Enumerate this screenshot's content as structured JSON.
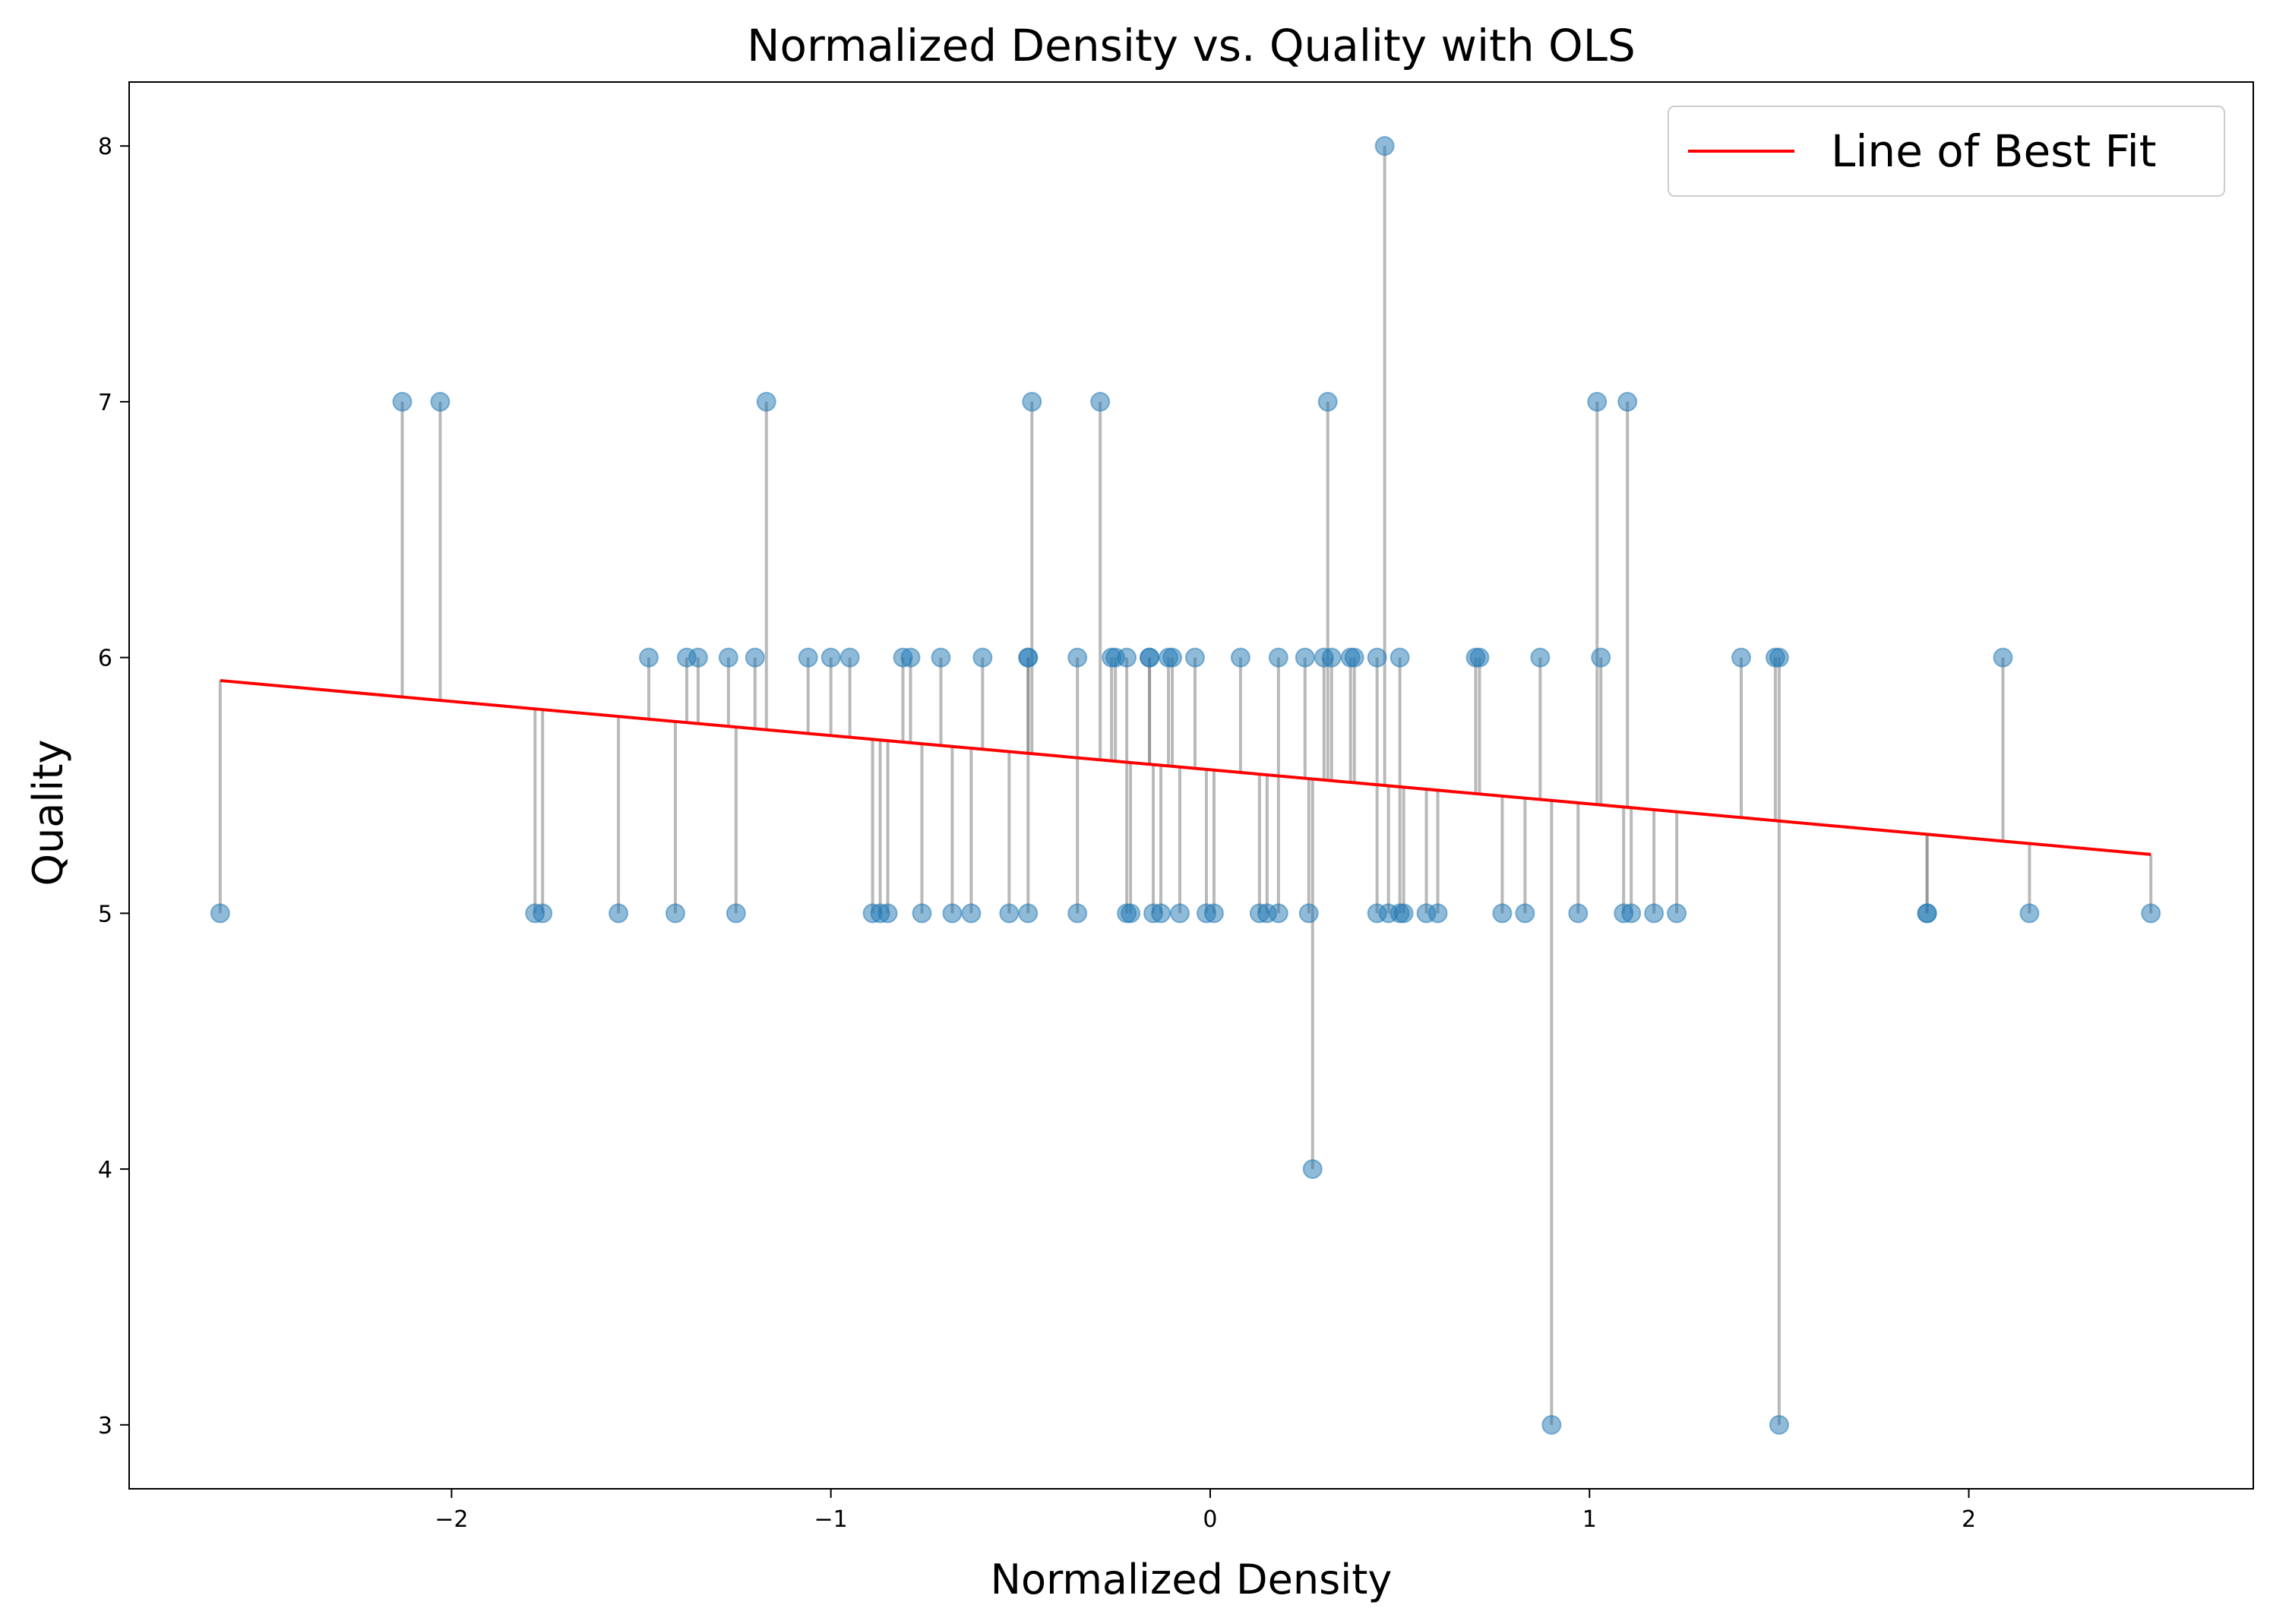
{
  "chart_data": {
    "type": "scatter",
    "title": "Normalized Density vs. Quality with OLS",
    "xlabel": "Normalized Density",
    "ylabel": "Quality",
    "xlim": [
      -2.85,
      2.75
    ],
    "ylim": [
      2.75,
      8.25
    ],
    "x_ticks": [
      -2,
      -1,
      0,
      1,
      2
    ],
    "x_tick_labels": [
      "−2",
      "−1",
      "0",
      "1",
      "2"
    ],
    "y_ticks": [
      3,
      4,
      5,
      6,
      7,
      8
    ],
    "y_tick_labels": [
      "3",
      "4",
      "5",
      "6",
      "7",
      "8"
    ],
    "grid": false,
    "legend": {
      "placement": "top-right",
      "entries": [
        "Line of Best Fit"
      ]
    },
    "colors": {
      "points": "#1f77b4",
      "fit_line": "#ff0000",
      "residuals": "#808080"
    },
    "fit_line": {
      "name": "Line of Best Fit",
      "x": [
        -2.61,
        2.48
      ],
      "y": [
        5.91,
        5.23
      ]
    },
    "points": [
      {
        "x": -2.61,
        "y": 5
      },
      {
        "x": -2.13,
        "y": 7
      },
      {
        "x": -2.03,
        "y": 7
      },
      {
        "x": -1.78,
        "y": 5
      },
      {
        "x": -1.76,
        "y": 5
      },
      {
        "x": -1.56,
        "y": 5
      },
      {
        "x": -1.48,
        "y": 6
      },
      {
        "x": -1.41,
        "y": 5
      },
      {
        "x": -1.38,
        "y": 6
      },
      {
        "x": -1.35,
        "y": 6
      },
      {
        "x": -1.27,
        "y": 6
      },
      {
        "x": -1.25,
        "y": 5
      },
      {
        "x": -1.2,
        "y": 6
      },
      {
        "x": -1.17,
        "y": 7
      },
      {
        "x": -1.06,
        "y": 6
      },
      {
        "x": -1.0,
        "y": 6
      },
      {
        "x": -0.95,
        "y": 6
      },
      {
        "x": -0.89,
        "y": 5
      },
      {
        "x": -0.87,
        "y": 5
      },
      {
        "x": -0.85,
        "y": 5
      },
      {
        "x": -0.81,
        "y": 6
      },
      {
        "x": -0.79,
        "y": 6
      },
      {
        "x": -0.76,
        "y": 5
      },
      {
        "x": -0.71,
        "y": 6
      },
      {
        "x": -0.68,
        "y": 5
      },
      {
        "x": -0.63,
        "y": 5
      },
      {
        "x": -0.6,
        "y": 6
      },
      {
        "x": -0.53,
        "y": 5
      },
      {
        "x": -0.48,
        "y": 6
      },
      {
        "x": -0.48,
        "y": 6
      },
      {
        "x": -0.48,
        "y": 5
      },
      {
        "x": -0.47,
        "y": 7
      },
      {
        "x": -0.35,
        "y": 6
      },
      {
        "x": -0.35,
        "y": 5
      },
      {
        "x": -0.29,
        "y": 7
      },
      {
        "x": -0.26,
        "y": 6
      },
      {
        "x": -0.25,
        "y": 6
      },
      {
        "x": -0.22,
        "y": 6
      },
      {
        "x": -0.22,
        "y": 5
      },
      {
        "x": -0.21,
        "y": 5
      },
      {
        "x": -0.16,
        "y": 6
      },
      {
        "x": -0.16,
        "y": 6
      },
      {
        "x": -0.15,
        "y": 5
      },
      {
        "x": -0.13,
        "y": 5
      },
      {
        "x": -0.11,
        "y": 6
      },
      {
        "x": -0.1,
        "y": 6
      },
      {
        "x": -0.08,
        "y": 5
      },
      {
        "x": -0.04,
        "y": 6
      },
      {
        "x": -0.01,
        "y": 5
      },
      {
        "x": 0.01,
        "y": 5
      },
      {
        "x": 0.08,
        "y": 6
      },
      {
        "x": 0.13,
        "y": 5
      },
      {
        "x": 0.15,
        "y": 5
      },
      {
        "x": 0.18,
        "y": 6
      },
      {
        "x": 0.18,
        "y": 5
      },
      {
        "x": 0.25,
        "y": 6
      },
      {
        "x": 0.26,
        "y": 5
      },
      {
        "x": 0.27,
        "y": 4
      },
      {
        "x": 0.3,
        "y": 6
      },
      {
        "x": 0.31,
        "y": 7
      },
      {
        "x": 0.32,
        "y": 6
      },
      {
        "x": 0.37,
        "y": 6
      },
      {
        "x": 0.38,
        "y": 6
      },
      {
        "x": 0.44,
        "y": 6
      },
      {
        "x": 0.44,
        "y": 5
      },
      {
        "x": 0.46,
        "y": 8
      },
      {
        "x": 0.47,
        "y": 5
      },
      {
        "x": 0.5,
        "y": 6
      },
      {
        "x": 0.5,
        "y": 5
      },
      {
        "x": 0.51,
        "y": 5
      },
      {
        "x": 0.57,
        "y": 5
      },
      {
        "x": 0.6,
        "y": 5
      },
      {
        "x": 0.7,
        "y": 6
      },
      {
        "x": 0.71,
        "y": 6
      },
      {
        "x": 0.77,
        "y": 5
      },
      {
        "x": 0.83,
        "y": 5
      },
      {
        "x": 0.87,
        "y": 6
      },
      {
        "x": 0.9,
        "y": 3
      },
      {
        "x": 0.97,
        "y": 5
      },
      {
        "x": 1.02,
        "y": 7
      },
      {
        "x": 1.03,
        "y": 6
      },
      {
        "x": 1.09,
        "y": 5
      },
      {
        "x": 1.1,
        "y": 7
      },
      {
        "x": 1.11,
        "y": 5
      },
      {
        "x": 1.17,
        "y": 5
      },
      {
        "x": 1.23,
        "y": 5
      },
      {
        "x": 1.4,
        "y": 6
      },
      {
        "x": 1.49,
        "y": 6
      },
      {
        "x": 1.5,
        "y": 6
      },
      {
        "x": 1.5,
        "y": 3
      },
      {
        "x": 1.89,
        "y": 5
      },
      {
        "x": 1.89,
        "y": 5
      },
      {
        "x": 2.09,
        "y": 6
      },
      {
        "x": 2.16,
        "y": 5
      },
      {
        "x": 2.48,
        "y": 5
      }
    ]
  }
}
